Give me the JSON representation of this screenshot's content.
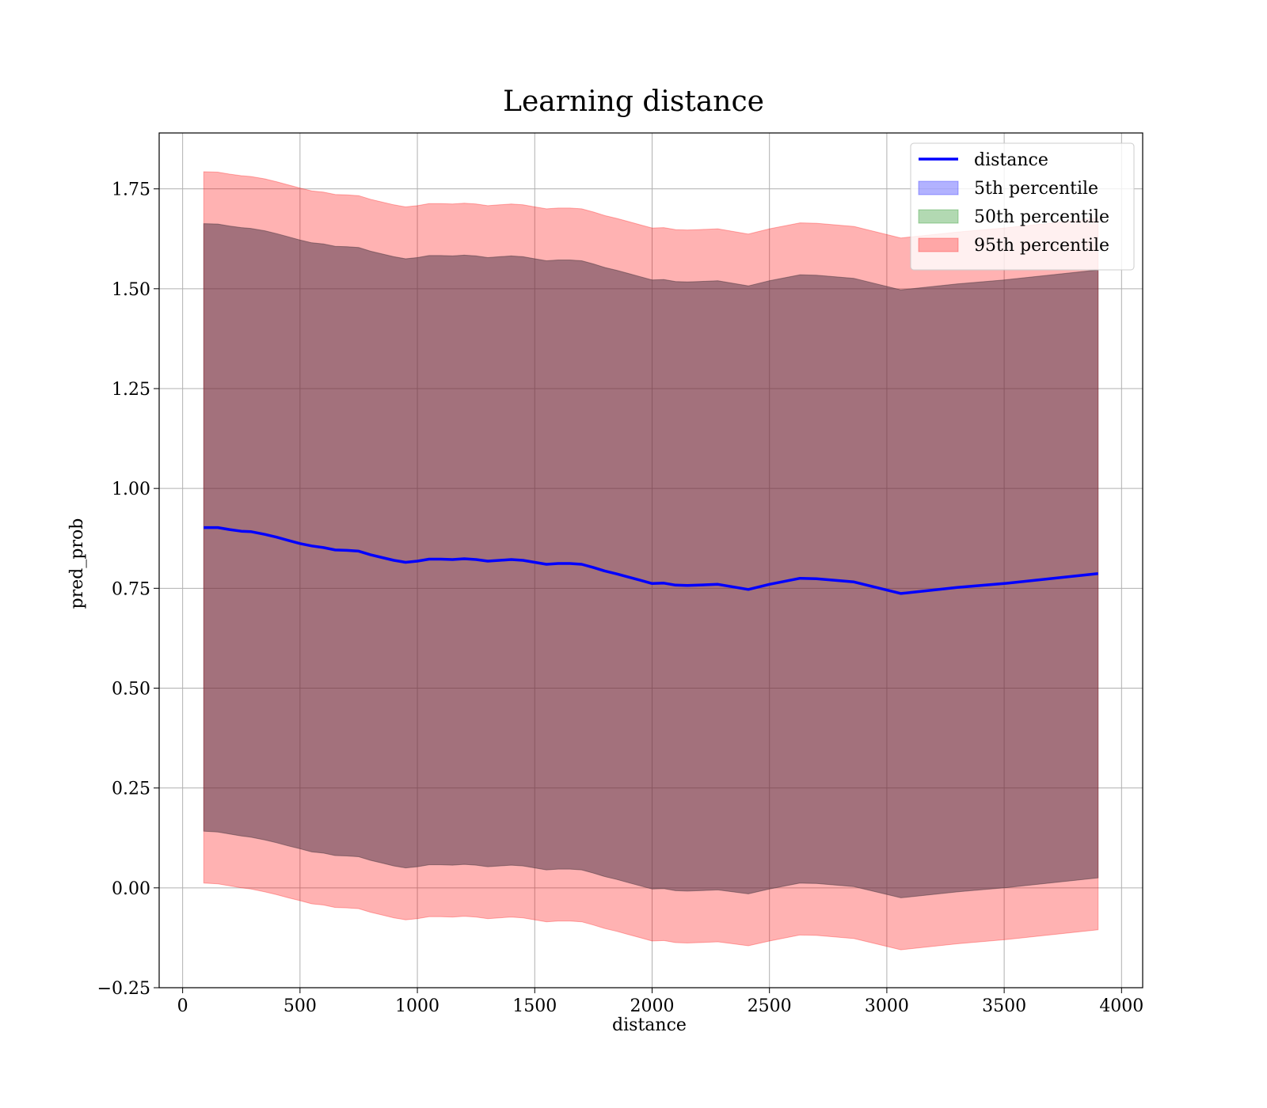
{
  "chart_data": {
    "type": "line",
    "title": "Learning distance",
    "xlabel": "distance",
    "ylabel": "pred_prob",
    "xlim": [
      -100,
      4090
    ],
    "ylim": [
      -0.25,
      1.89
    ],
    "xticks": [
      0,
      500,
      1000,
      1500,
      2000,
      2500,
      3000,
      3500,
      4000
    ],
    "xtick_labels": [
      "0",
      "500",
      "1000",
      "1500",
      "2000",
      "2500",
      "3000",
      "3500",
      "4000"
    ],
    "yticks": [
      -0.25,
      0.0,
      0.25,
      0.5,
      0.75,
      1.0,
      1.25,
      1.5,
      1.75
    ],
    "ytick_labels": [
      "−0.25",
      "0.00",
      "0.25",
      "0.50",
      "0.75",
      "1.00",
      "1.25",
      "1.50",
      "1.75"
    ],
    "grid": true,
    "legend_position": "top-right",
    "x": [
      90,
      150,
      200,
      250,
      290,
      350,
      400,
      450,
      500,
      550,
      600,
      650,
      700,
      750,
      800,
      850,
      900,
      950,
      1000,
      1050,
      1100,
      1150,
      1200,
      1250,
      1300,
      1350,
      1400,
      1450,
      1500,
      1550,
      1600,
      1650,
      1700,
      1750,
      1800,
      1850,
      1900,
      1950,
      2000,
      2050,
      2100,
      2150,
      2200,
      2280,
      2410,
      2500,
      2630,
      2700,
      2860,
      3060,
      3300,
      3500,
      3900
    ],
    "series": [
      {
        "name": "distance",
        "kind": "line",
        "color": "#0000ff",
        "values": [
          0.902,
          0.902,
          0.897,
          0.893,
          0.892,
          0.885,
          0.878,
          0.87,
          0.862,
          0.856,
          0.852,
          0.846,
          0.845,
          0.843,
          0.834,
          0.827,
          0.82,
          0.815,
          0.818,
          0.823,
          0.823,
          0.822,
          0.824,
          0.822,
          0.818,
          0.82,
          0.822,
          0.82,
          0.815,
          0.81,
          0.812,
          0.812,
          0.81,
          0.802,
          0.793,
          0.786,
          0.778,
          0.77,
          0.762,
          0.763,
          0.758,
          0.757,
          0.758,
          0.76,
          0.747,
          0.76,
          0.775,
          0.774,
          0.766,
          0.737,
          0.752,
          0.762,
          0.787
        ]
      },
      {
        "name": "5th percentile",
        "kind": "band",
        "color": "#0000ff",
        "opacity": 0.3,
        "lower": [
          0.142,
          0.14,
          0.135,
          0.13,
          0.127,
          0.12,
          0.113,
          0.105,
          0.098,
          0.09,
          0.087,
          0.081,
          0.08,
          0.078,
          0.069,
          0.062,
          0.055,
          0.05,
          0.053,
          0.058,
          0.058,
          0.057,
          0.059,
          0.057,
          0.053,
          0.055,
          0.057,
          0.055,
          0.05,
          0.045,
          0.047,
          0.047,
          0.045,
          0.037,
          0.028,
          0.021,
          0.013,
          0.005,
          -0.003,
          -0.002,
          -0.007,
          -0.008,
          -0.007,
          -0.005,
          -0.015,
          -0.003,
          0.012,
          0.011,
          0.003,
          -0.025,
          -0.01,
          0.0,
          0.025
        ],
        "upper": [
          1.663,
          1.662,
          1.657,
          1.653,
          1.651,
          1.645,
          1.638,
          1.63,
          1.622,
          1.615,
          1.612,
          1.606,
          1.605,
          1.603,
          1.594,
          1.587,
          1.58,
          1.575,
          1.578,
          1.583,
          1.583,
          1.582,
          1.584,
          1.582,
          1.578,
          1.58,
          1.582,
          1.58,
          1.575,
          1.57,
          1.572,
          1.572,
          1.57,
          1.562,
          1.553,
          1.546,
          1.538,
          1.53,
          1.522,
          1.523,
          1.518,
          1.517,
          1.518,
          1.52,
          1.507,
          1.52,
          1.535,
          1.534,
          1.526,
          1.497,
          1.512,
          1.522,
          1.547
        ]
      },
      {
        "name": "50th percentile",
        "kind": "band",
        "color": "#008000",
        "opacity": 0.3,
        "lower": [
          0.142,
          0.14,
          0.135,
          0.13,
          0.127,
          0.12,
          0.113,
          0.105,
          0.098,
          0.09,
          0.087,
          0.081,
          0.08,
          0.078,
          0.069,
          0.062,
          0.055,
          0.05,
          0.053,
          0.058,
          0.058,
          0.057,
          0.059,
          0.057,
          0.053,
          0.055,
          0.057,
          0.055,
          0.05,
          0.045,
          0.047,
          0.047,
          0.045,
          0.037,
          0.028,
          0.021,
          0.013,
          0.005,
          -0.003,
          -0.002,
          -0.007,
          -0.008,
          -0.007,
          -0.005,
          -0.015,
          -0.003,
          0.012,
          0.011,
          0.003,
          -0.025,
          -0.01,
          0.0,
          0.025
        ],
        "upper": [
          1.663,
          1.662,
          1.657,
          1.653,
          1.651,
          1.645,
          1.638,
          1.63,
          1.622,
          1.615,
          1.612,
          1.606,
          1.605,
          1.603,
          1.594,
          1.587,
          1.58,
          1.575,
          1.578,
          1.583,
          1.583,
          1.582,
          1.584,
          1.582,
          1.578,
          1.58,
          1.582,
          1.58,
          1.575,
          1.57,
          1.572,
          1.572,
          1.57,
          1.562,
          1.553,
          1.546,
          1.538,
          1.53,
          1.522,
          1.523,
          1.518,
          1.517,
          1.518,
          1.52,
          1.507,
          1.52,
          1.535,
          1.534,
          1.526,
          1.497,
          1.512,
          1.522,
          1.547
        ]
      },
      {
        "name": "95th percentile",
        "kind": "band",
        "color": "#ff0000",
        "opacity": 0.3,
        "lower": [
          0.012,
          0.01,
          0.005,
          0.0,
          -0.003,
          -0.01,
          -0.017,
          -0.025,
          -0.032,
          -0.04,
          -0.043,
          -0.049,
          -0.05,
          -0.052,
          -0.061,
          -0.068,
          -0.075,
          -0.08,
          -0.077,
          -0.072,
          -0.072,
          -0.073,
          -0.071,
          -0.073,
          -0.077,
          -0.075,
          -0.073,
          -0.075,
          -0.08,
          -0.085,
          -0.083,
          -0.083,
          -0.085,
          -0.093,
          -0.102,
          -0.109,
          -0.117,
          -0.125,
          -0.133,
          -0.132,
          -0.137,
          -0.138,
          -0.137,
          -0.135,
          -0.145,
          -0.133,
          -0.118,
          -0.119,
          -0.127,
          -0.155,
          -0.14,
          -0.13,
          -0.105
        ],
        "upper": [
          1.793,
          1.792,
          1.787,
          1.783,
          1.781,
          1.775,
          1.768,
          1.76,
          1.752,
          1.745,
          1.742,
          1.736,
          1.735,
          1.733,
          1.724,
          1.717,
          1.71,
          1.705,
          1.708,
          1.713,
          1.713,
          1.712,
          1.714,
          1.712,
          1.708,
          1.71,
          1.712,
          1.71,
          1.705,
          1.7,
          1.702,
          1.702,
          1.7,
          1.692,
          1.683,
          1.676,
          1.668,
          1.66,
          1.652,
          1.653,
          1.648,
          1.647,
          1.648,
          1.65,
          1.637,
          1.65,
          1.665,
          1.664,
          1.656,
          1.627,
          1.642,
          1.652,
          1.677
        ]
      }
    ]
  }
}
